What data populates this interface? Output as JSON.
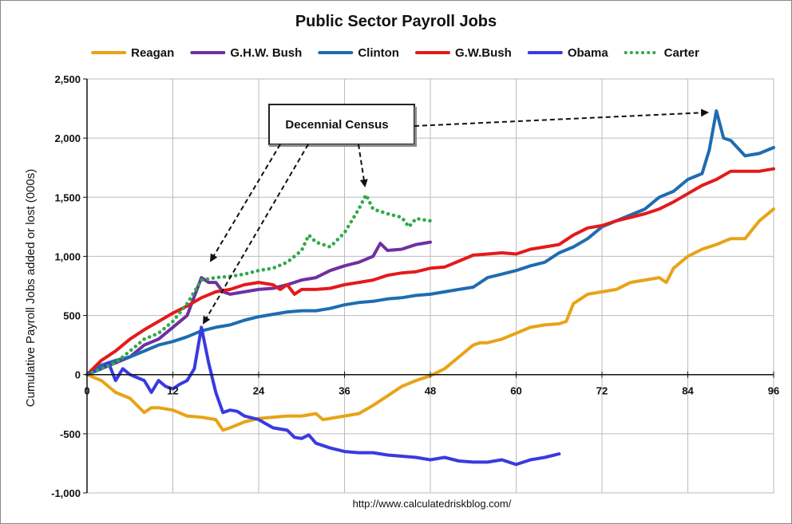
{
  "chart_data": {
    "type": "line",
    "title": "Public Sector Payroll Jobs",
    "ylabel": "Cumulative Payroll Jobs added or lost (000s)",
    "xlabel": "",
    "source": "http://www.calculatedriskblog.com/",
    "xlim": [
      0,
      96
    ],
    "ylim": [
      -1000,
      2500
    ],
    "x_ticks": [
      0,
      12,
      24,
      36,
      48,
      60,
      72,
      84,
      96
    ],
    "y_ticks": [
      {
        "value": 2500,
        "label": "2,500"
      },
      {
        "value": 2000,
        "label": "2,000"
      },
      {
        "value": 1500,
        "label": "1,500"
      },
      {
        "value": 1000,
        "label": "1,000"
      },
      {
        "value": 500,
        "label": "500"
      },
      {
        "value": 0,
        "label": "0"
      },
      {
        "value": -500,
        "label": "-500"
      },
      {
        "value": -1000,
        "label": "-1,000"
      }
    ],
    "grid": true,
    "legend_position": "top",
    "series": [
      {
        "name": "Reagan",
        "color": "#E8A317",
        "style": "solid",
        "x": [
          0,
          2,
          4,
          6,
          8,
          9,
          10,
          12,
          14,
          16,
          18,
          19,
          20,
          22,
          24,
          26,
          28,
          30,
          32,
          33,
          34,
          36,
          38,
          40,
          42,
          44,
          46,
          48,
          50,
          52,
          54,
          55,
          56,
          58,
          60,
          62,
          64,
          66,
          67,
          68,
          70,
          72,
          74,
          76,
          78,
          80,
          81,
          82,
          84,
          86,
          88,
          90,
          92,
          94,
          96
        ],
        "y": [
          0,
          -50,
          -150,
          -200,
          -320,
          -280,
          -280,
          -300,
          -350,
          -360,
          -380,
          -470,
          -450,
          -400,
          -370,
          -360,
          -350,
          -350,
          -330,
          -380,
          -370,
          -350,
          -330,
          -260,
          -180,
          -100,
          -50,
          -10,
          50,
          150,
          250,
          270,
          270,
          300,
          350,
          400,
          420,
          430,
          450,
          600,
          680,
          700,
          720,
          780,
          800,
          820,
          780,
          900,
          1000,
          1060,
          1100,
          1150,
          1150,
          1300,
          1400
        ]
      },
      {
        "name": "G.H.W. Bush",
        "color": "#7030A0",
        "style": "solid",
        "x": [
          0,
          2,
          4,
          6,
          8,
          10,
          12,
          14,
          16,
          17,
          18,
          19,
          20,
          22,
          24,
          26,
          28,
          30,
          32,
          34,
          36,
          38,
          40,
          41,
          42,
          44,
          46,
          48
        ],
        "y": [
          0,
          50,
          100,
          150,
          250,
          300,
          400,
          500,
          820,
          780,
          780,
          700,
          680,
          700,
          720,
          730,
          760,
          800,
          820,
          880,
          920,
          950,
          1000,
          1110,
          1050,
          1060,
          1100,
          1120
        ]
      },
      {
        "name": "Clinton",
        "color": "#1F6CB0",
        "style": "solid",
        "x": [
          0,
          2,
          4,
          6,
          8,
          10,
          12,
          14,
          16,
          18,
          20,
          22,
          24,
          26,
          28,
          30,
          32,
          34,
          36,
          38,
          40,
          42,
          44,
          46,
          48,
          50,
          52,
          54,
          56,
          58,
          60,
          62,
          64,
          66,
          68,
          70,
          72,
          74,
          76,
          78,
          80,
          82,
          84,
          86,
          87,
          88,
          89,
          90,
          92,
          94,
          96
        ],
        "y": [
          0,
          80,
          120,
          150,
          200,
          250,
          280,
          320,
          370,
          400,
          420,
          460,
          490,
          510,
          530,
          540,
          540,
          560,
          590,
          610,
          620,
          640,
          650,
          670,
          680,
          700,
          720,
          740,
          820,
          850,
          880,
          920,
          950,
          1030,
          1080,
          1150,
          1250,
          1300,
          1350,
          1400,
          1500,
          1550,
          1650,
          1700,
          1900,
          2230,
          2000,
          1980,
          1850,
          1870,
          1920
        ]
      },
      {
        "name": "G.W.Bush",
        "color": "#E31A1C",
        "style": "solid",
        "x": [
          0,
          2,
          4,
          6,
          8,
          10,
          12,
          14,
          16,
          18,
          20,
          22,
          24,
          26,
          27,
          28,
          29,
          30,
          32,
          34,
          36,
          38,
          40,
          42,
          44,
          46,
          48,
          50,
          52,
          54,
          56,
          58,
          60,
          62,
          64,
          66,
          68,
          70,
          72,
          74,
          76,
          78,
          80,
          82,
          84,
          86,
          88,
          90,
          92,
          94,
          96
        ],
        "y": [
          0,
          120,
          200,
          300,
          380,
          450,
          520,
          580,
          650,
          700,
          720,
          760,
          780,
          760,
          720,
          760,
          680,
          720,
          720,
          730,
          760,
          780,
          800,
          840,
          860,
          870,
          900,
          910,
          960,
          1010,
          1020,
          1030,
          1020,
          1060,
          1080,
          1100,
          1180,
          1240,
          1260,
          1300,
          1330,
          1360,
          1400,
          1460,
          1530,
          1600,
          1650,
          1720,
          1720,
          1720,
          1740
        ]
      },
      {
        "name": "Obama",
        "color": "#3A3AE0",
        "style": "solid",
        "x": [
          0,
          2,
          3,
          4,
          5,
          6,
          8,
          9,
          10,
          11,
          12,
          13,
          14,
          15,
          16,
          17,
          18,
          19,
          20,
          21,
          22,
          24,
          26,
          28,
          29,
          30,
          31,
          32,
          34,
          36,
          38,
          40,
          42,
          44,
          46,
          48,
          50,
          52,
          54,
          56,
          58,
          60,
          62,
          64,
          66
        ],
        "y": [
          0,
          50,
          100,
          -50,
          50,
          0,
          -50,
          -150,
          -50,
          -100,
          -120,
          -80,
          -50,
          50,
          400,
          100,
          -150,
          -320,
          -300,
          -310,
          -350,
          -380,
          -450,
          -470,
          -530,
          -540,
          -510,
          -580,
          -620,
          -650,
          -660,
          -660,
          -680,
          -690,
          -700,
          -720,
          -700,
          -730,
          -740,
          -740,
          -720,
          -760,
          -720,
          -700,
          -670
        ]
      },
      {
        "name": "Carter",
        "color": "#2EAA4A",
        "style": "dotted",
        "x": [
          0,
          2,
          4,
          6,
          8,
          10,
          12,
          14,
          16,
          18,
          20,
          22,
          24,
          26,
          28,
          30,
          31,
          32,
          34,
          36,
          37,
          38,
          39,
          40,
          42,
          44,
          45,
          46,
          48
        ],
        "y": [
          0,
          50,
          100,
          200,
          300,
          350,
          450,
          600,
          800,
          820,
          830,
          850,
          880,
          900,
          950,
          1050,
          1180,
          1120,
          1080,
          1200,
          1300,
          1400,
          1520,
          1400,
          1360,
          1330,
          1250,
          1320,
          1300
        ]
      }
    ],
    "annotations": [
      {
        "label": "Decennial Census"
      }
    ]
  }
}
